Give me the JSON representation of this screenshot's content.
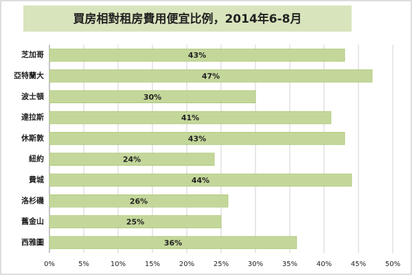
{
  "chart_data": {
    "type": "bar",
    "orientation": "horizontal",
    "title": "買房相對租房費用便宜比例，2014年6-8月",
    "categories": [
      "芝加哥",
      "亞特蘭大",
      "波士頓",
      "達拉斯",
      "休斯敦",
      "紐約",
      "費城",
      "洛杉磯",
      "舊金山",
      "西雅圖"
    ],
    "values": [
      43,
      47,
      30,
      41,
      43,
      24,
      44,
      26,
      25,
      36
    ],
    "value_labels": [
      "43%",
      "47%",
      "30%",
      "41%",
      "43%",
      "24%",
      "44%",
      "26%",
      "25%",
      "36%"
    ],
    "color": "#c4d79b",
    "xlim": [
      0,
      50
    ],
    "xticks": [
      {
        "value": 0,
        "label": "0%"
      },
      {
        "value": 5,
        "label": "5%"
      },
      {
        "value": 10,
        "label": "10%"
      },
      {
        "value": 15,
        "label": "15%"
      },
      {
        "value": 20,
        "label": "20%"
      },
      {
        "value": 25,
        "label": "25%"
      },
      {
        "value": 30,
        "label": "30%"
      },
      {
        "value": 35,
        "label": "35%"
      },
      {
        "value": 40,
        "label": "40%"
      },
      {
        "value": 45,
        "label": "45%"
      },
      {
        "value": 50,
        "label": "50%"
      }
    ],
    "grid": true
  }
}
